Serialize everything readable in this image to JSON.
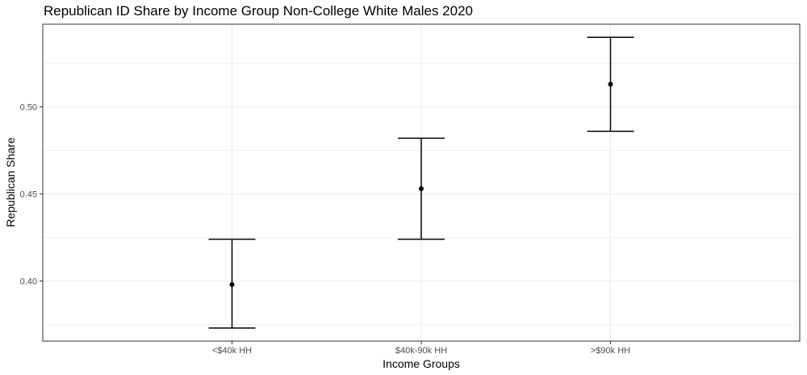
{
  "chart_data": {
    "type": "scatter",
    "title": "Republican ID Share by Income Group Non-College White Males 2020",
    "xlabel": "Income Groups",
    "ylabel": "Republican Share",
    "categories": [
      "<$40k HH",
      "$40k-90k HH",
      ">$90k HH"
    ],
    "series": [
      {
        "values": [
          0.398,
          0.453,
          0.513
        ],
        "lower": [
          0.373,
          0.424,
          0.486
        ],
        "upper": [
          0.424,
          0.482,
          0.54
        ]
      }
    ],
    "yticks": [
      0.4,
      0.45,
      0.5
    ],
    "ytick_labels": [
      "0.40",
      "0.45",
      "0.50"
    ],
    "ylim": [
      0.3655,
      0.5475
    ],
    "grid": true,
    "legend": "none",
    "colors": {
      "point": "#000000",
      "errorbar": "#000000",
      "grid": "#ebebeb",
      "panel_border": "#333333",
      "tick_label": "#4d4d4d"
    }
  }
}
